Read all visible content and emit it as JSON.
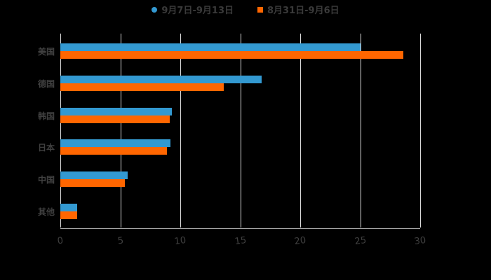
{
  "chart_data": {
    "type": "bar",
    "orientation": "horizontal",
    "title": "",
    "xlabel": "",
    "ylabel": "",
    "xlim": [
      0,
      30
    ],
    "x_ticks": [
      "0",
      "5",
      "10",
      "15",
      "20",
      "25",
      "30"
    ],
    "grid": true,
    "legend_position": "top",
    "categories": [
      "美国",
      "德国",
      "韩国",
      "日本",
      "中国",
      "其他"
    ],
    "series": [
      {
        "name": "9月7日-9月13日",
        "color": "#3399d1",
        "values": [
          25.0,
          16.8,
          9.3,
          9.2,
          5.6,
          1.4
        ]
      },
      {
        "name": "8月31日-9月6日",
        "color": "#ff6600",
        "values": [
          28.6,
          13.6,
          9.1,
          8.9,
          5.4,
          1.4
        ]
      }
    ]
  },
  "legend": {
    "series1": "9月7日-9月13日",
    "series2": "8月31日-9月6日"
  },
  "colors": {
    "series1": "#3399d1",
    "series2": "#ff6600",
    "grid": "#d9d9d9",
    "text": "#404040"
  }
}
